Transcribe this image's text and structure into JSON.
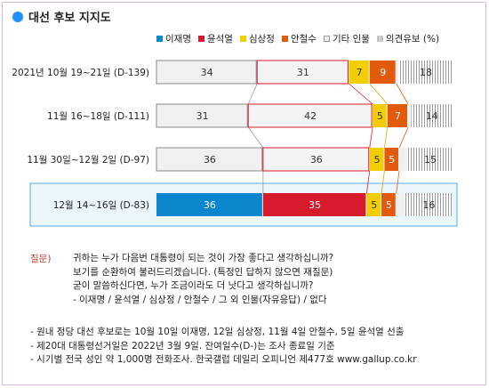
{
  "title": "대선 후보 지지도",
  "legend": [
    {
      "label": "이재명",
      "color": "#0a87cc",
      "style": "solid"
    },
    {
      "label": "윤석열",
      "color": "#d71a2c",
      "style": "solid"
    },
    {
      "label": "심상정",
      "color": "#f2cd00",
      "style": "solid"
    },
    {
      "label": "안철수",
      "color": "#e25a0c",
      "style": "solid"
    },
    {
      "label": "기타 인물",
      "color": "#eeeeee",
      "style": "gray"
    },
    {
      "label": "의견유보 (%)",
      "color": "#aaaaaa",
      "style": "hatch"
    }
  ],
  "chart_data": {
    "type": "bar",
    "stacked": true,
    "orientation": "horizontal",
    "categories": [
      "2021년 10월 19~21일 (D-139)",
      "11월 16~18일 (D-111)",
      "11월 30일~12월 2일 (D-97)",
      "12월 14~16일 (D-83)"
    ],
    "series": [
      {
        "name": "이재명",
        "values": [
          34,
          31,
          36,
          36
        ]
      },
      {
        "name": "윤석열",
        "values": [
          31,
          42,
          36,
          35
        ]
      },
      {
        "name": "심상정",
        "values": [
          7,
          5,
          5,
          5
        ]
      },
      {
        "name": "안철수",
        "values": [
          9,
          7,
          5,
          5
        ]
      },
      {
        "name": "기타 인물",
        "values": [
          1,
          1,
          3,
          3
        ]
      },
      {
        "name": "의견유보",
        "values": [
          18,
          14,
          15,
          16
        ]
      }
    ],
    "highlighted_category": "12월 14~16일 (D-83)"
  },
  "question": {
    "label": "질문)",
    "lines": [
      "귀하는 누가 다음번 대통령이 되는 것이 가장 좋다고 생각하십니까?",
      "보기를 순환하여 불러드리겠습니다. (특정인 답하지 않으면 재질문)",
      "굳이 말씀하신다면, 누가 조금이라도 더 낫다고 생각하십니까?",
      "- 이재명 / 윤석열 / 심상정 / 안철수 / 그 외 인물(자유응답) / 없다"
    ]
  },
  "footnotes": [
    "- 원내 정당 대선 후보로는 10월 10일 이재명, 12일 심상정, 11월 4일 안철수, 5일 윤석열 선출",
    "- 제20대 대통령선거일은 2022년 3월 9일. 잔여일수(D-)는 조사 종료일 기준",
    "- 시기별 전국 성인 약 1,000명 전화조사. 한국갤럽 데일리 오피니언 제477호 www.gallup.co.kr"
  ]
}
